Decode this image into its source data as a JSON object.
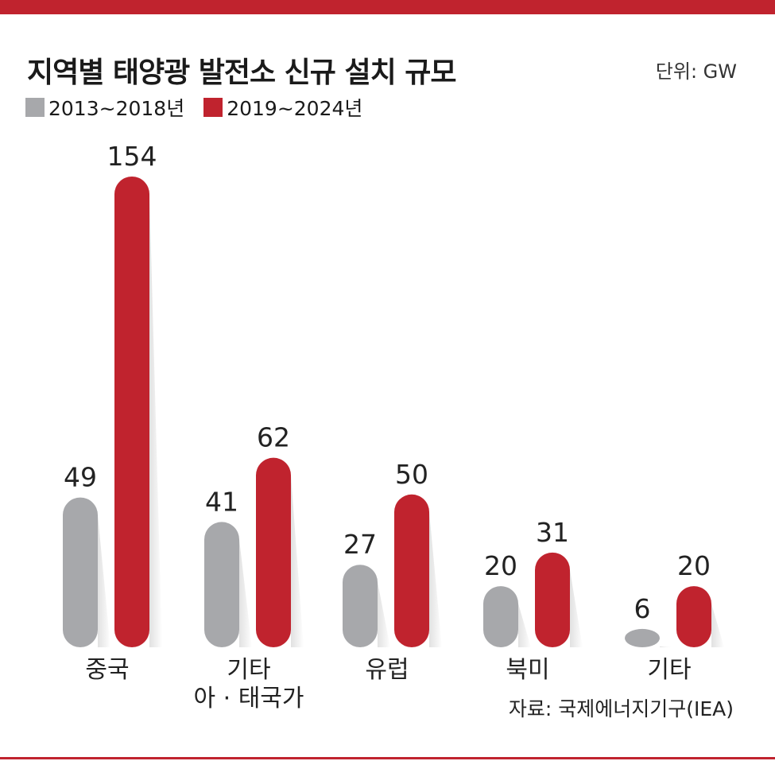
{
  "title": "지역별 태양광 발전소 신규 설치 규모",
  "unit_label": "단위: GW",
  "source": "자료: 국제에너지기구(IEA)",
  "colors": {
    "accent": "#c0232e",
    "gray": "#a7a8ab"
  },
  "chart_data": {
    "type": "bar",
    "title": "지역별 태양광 발전소 신규 설치 규모",
    "categories": [
      [
        "중국"
      ],
      [
        "기타",
        "아 · 태국가"
      ],
      [
        "유럽"
      ],
      [
        "북미"
      ],
      [
        "기타"
      ]
    ],
    "series": [
      {
        "name": "2013~2018년",
        "color": "#a7a8ab",
        "values": [
          49,
          41,
          27,
          20,
          6
        ]
      },
      {
        "name": "2019~2024년",
        "color": "#c0232e",
        "values": [
          154,
          62,
          50,
          31,
          20
        ]
      }
    ],
    "ylim": [
      0,
      154
    ],
    "grid": false,
    "legend": "top-left"
  }
}
